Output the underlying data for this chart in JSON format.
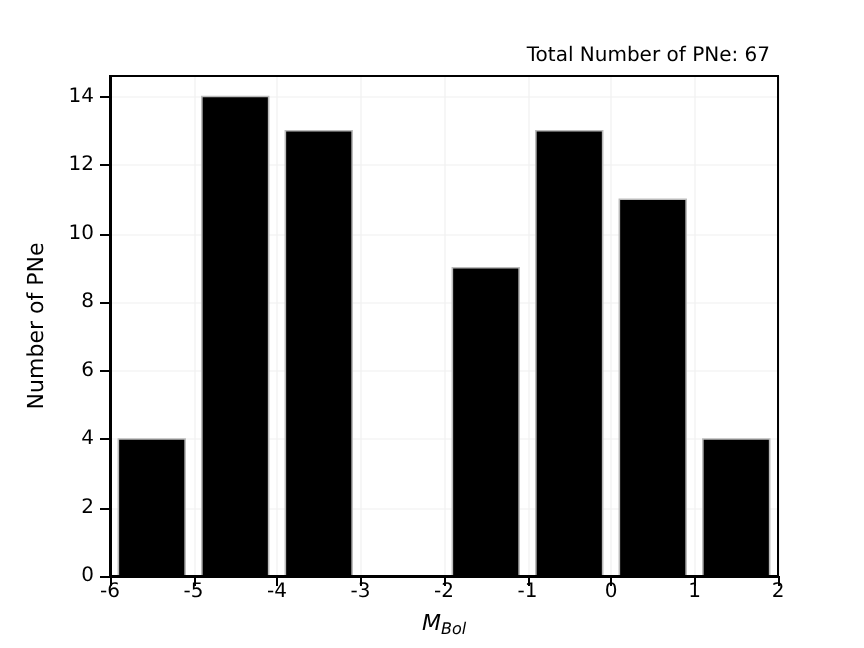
{
  "chart_data": {
    "type": "histogram",
    "title": "Total Number of PNe: 67",
    "xlabel": "M$_{Bol}$",
    "ylabel": "Number of PNe",
    "bins": [
      -6,
      -5,
      -4,
      -3,
      -2,
      -1,
      0,
      1,
      2
    ],
    "values": [
      4,
      14,
      13,
      0,
      9,
      13,
      11,
      4
    ],
    "color": "#000000",
    "xlim": [
      -6,
      2
    ],
    "xticks": [
      -6,
      -5,
      -4,
      -3,
      -2,
      -1,
      0,
      1,
      2
    ],
    "ylim": [
      0,
      14.6
    ],
    "yticks": [
      0,
      2,
      4,
      6,
      8,
      10,
      12,
      14
    ],
    "grid": true
  }
}
